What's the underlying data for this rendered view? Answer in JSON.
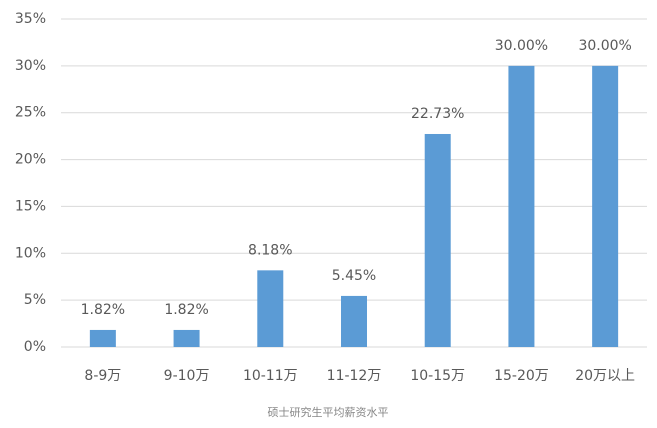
{
  "chart_data": {
    "type": "bar",
    "title": "硕士研究生平均薪资水平",
    "categories": [
      "8-9万",
      "9-10万",
      "10-11万",
      "11-12万",
      "10-15万",
      "15-20万",
      "20万以上"
    ],
    "values": [
      1.82,
      1.82,
      8.18,
      5.45,
      22.73,
      30,
      30
    ],
    "value_labels": [
      "1.82%",
      "1.82%",
      "8.18%",
      "5.45%",
      "22.73%",
      "30.00%",
      "30.00%"
    ],
    "color": "#5b9bd5",
    "ylim": [
      0,
      35
    ],
    "yticks": [
      {
        "value": 0,
        "label": "0%"
      },
      {
        "value": 5,
        "label": "5%"
      },
      {
        "value": 10,
        "label": "10%"
      },
      {
        "value": 15,
        "label": "15%"
      },
      {
        "value": 20,
        "label": "20%"
      },
      {
        "value": 25,
        "label": "25%"
      },
      {
        "value": 30,
        "label": "30%"
      },
      {
        "value": 35,
        "label": "35%"
      }
    ],
    "grid": true
  }
}
